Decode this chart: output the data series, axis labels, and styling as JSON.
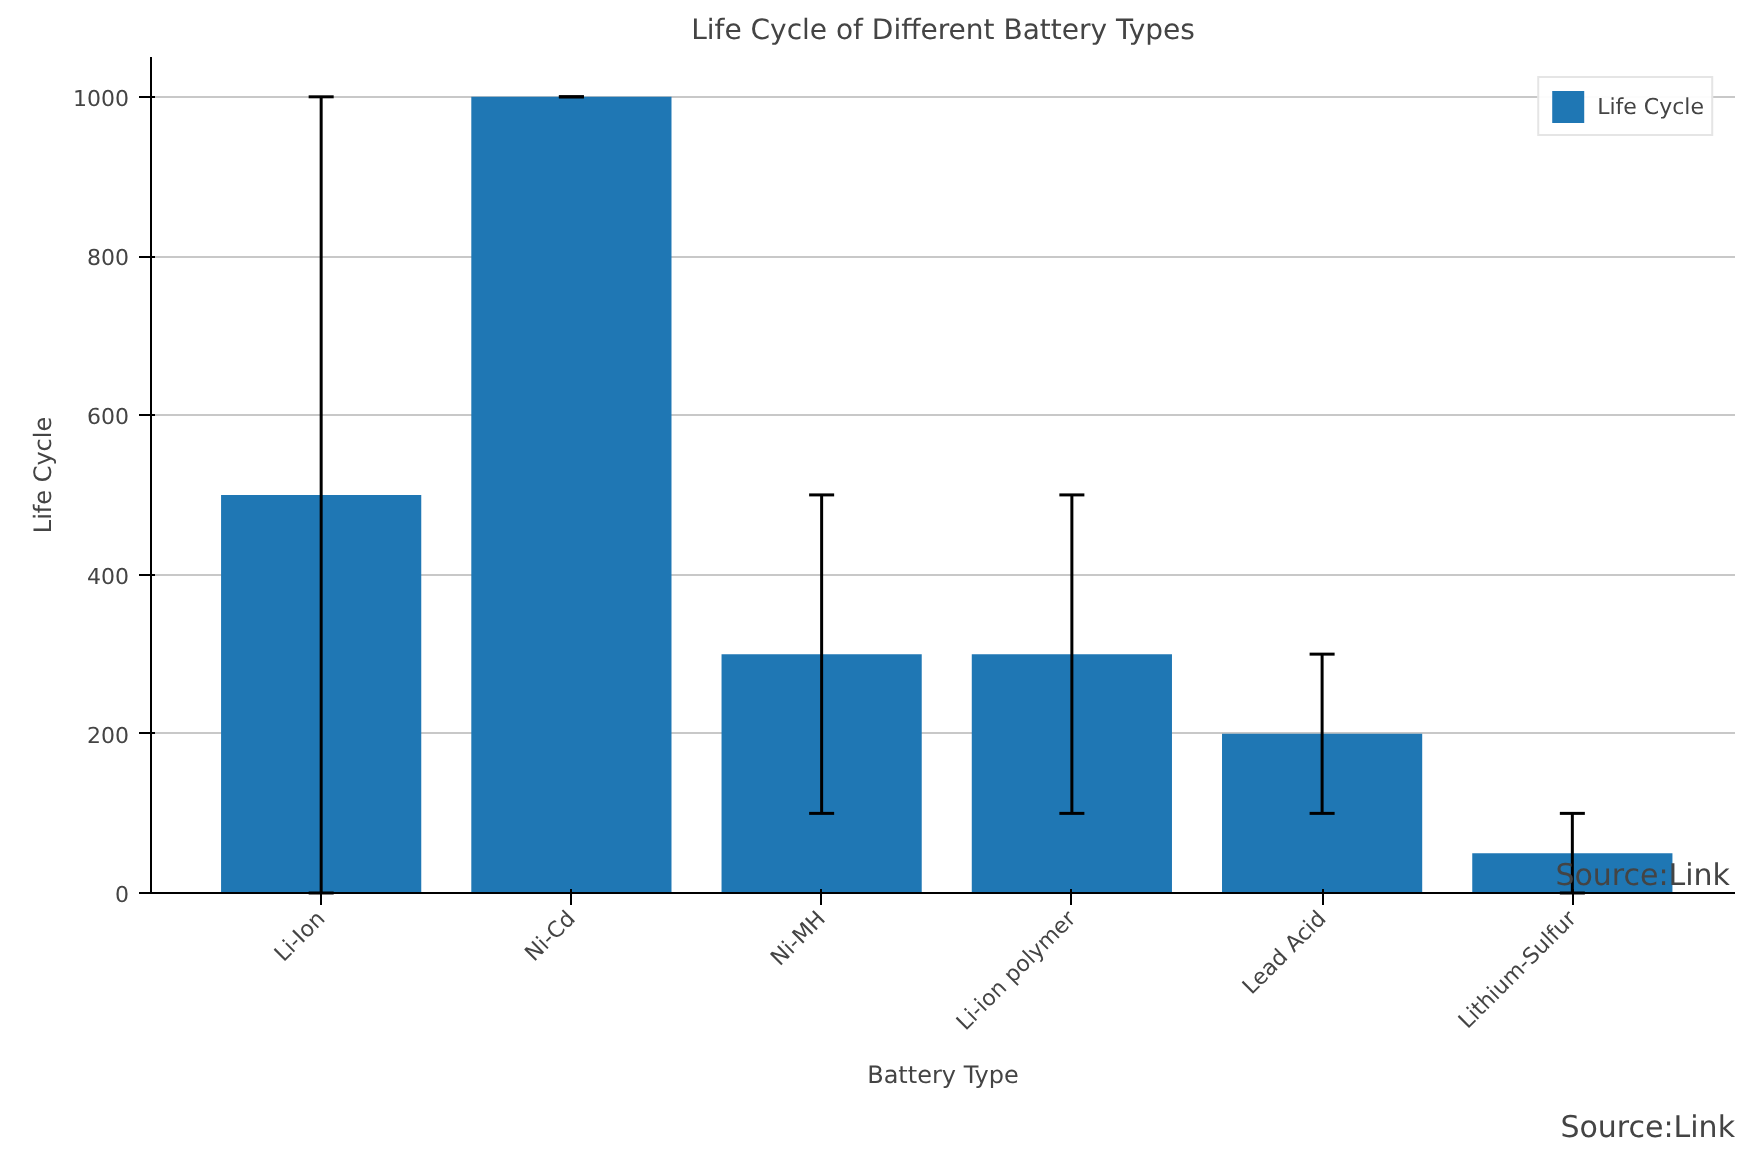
{
  "chart_data": {
    "type": "bar",
    "title": "Life Cycle of Different Battery Types",
    "xlabel": "Battery Type",
    "ylabel": "Life Cycle",
    "categories": [
      "Li-Ion",
      "Ni-Cd",
      "Ni-MH",
      "Li-ion polymer",
      "Lead Acid",
      "Lithium-Sulfur"
    ],
    "series": [
      {
        "name": "Life Cycle",
        "color": "#1f77b4",
        "values": [
          500,
          1000,
          300,
          300,
          200,
          50
        ],
        "errors": [
          500,
          0,
          200,
          200,
          100,
          50
        ]
      }
    ],
    "ylim": [
      0,
      1050
    ],
    "yticks": [
      0,
      200,
      400,
      600,
      800,
      1000
    ],
    "grid": "y",
    "legend": "top right",
    "annotations": [
      "Source:Link",
      "Source:Link"
    ]
  }
}
